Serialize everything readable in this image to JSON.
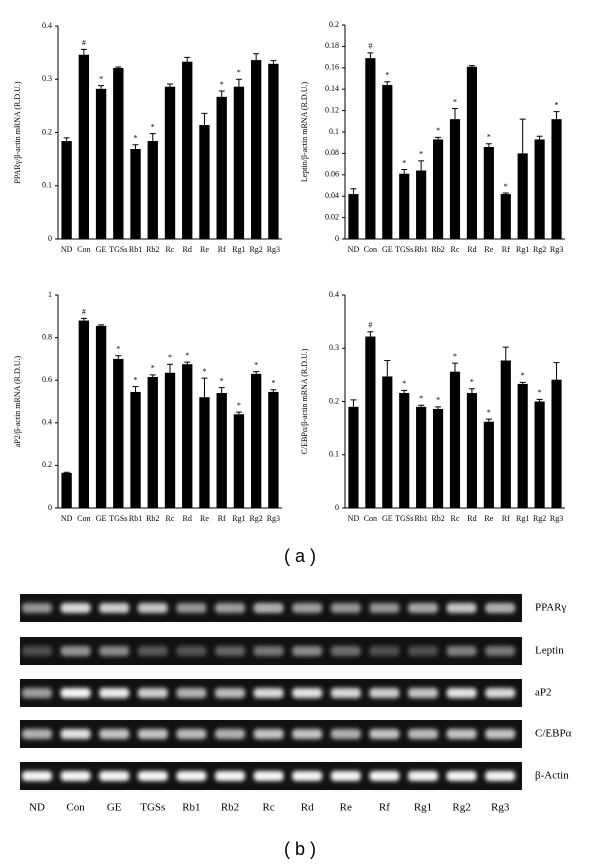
{
  "chart_data": [
    {
      "type": "bar",
      "y_label": "PPARγ/β-actin mRNA (R.D.U.)",
      "categories": [
        "ND",
        "Con",
        "GE",
        "TGSs",
        "Rb1",
        "Rb2",
        "Rc",
        "Rd",
        "Re",
        "Rf",
        "Rg1",
        "Rg2",
        "Rg3"
      ],
      "values": [
        0.184,
        0.346,
        0.282,
        0.321,
        0.169,
        0.184,
        0.286,
        0.333,
        0.214,
        0.267,
        0.286,
        0.336,
        0.329
      ],
      "errors": [
        0.006,
        0.01,
        0.006,
        0.002,
        0.008,
        0.014,
        0.005,
        0.008,
        0.022,
        0.011,
        0.014,
        0.012,
        0.006
      ],
      "markers": [
        null,
        "#",
        "*",
        null,
        "*",
        "*",
        null,
        null,
        null,
        "*",
        "*",
        null,
        null
      ],
      "color": "#000000",
      "ylim": [
        0,
        0.4
      ],
      "yticks": [
        0,
        0.1,
        0.2,
        0.3,
        0.4
      ]
    },
    {
      "type": "bar",
      "y_label": "Leptin/β-actin mRNA (R.D.U.)",
      "categories": [
        "ND",
        "Con",
        "GE",
        "TGSs",
        "Rb1",
        "Rb2",
        "Rc",
        "Rd",
        "Re",
        "Rf",
        "Rg1",
        "Rg2",
        "Rg3"
      ],
      "values": [
        0.042,
        0.169,
        0.144,
        0.061,
        0.064,
        0.093,
        0.112,
        0.161,
        0.086,
        0.042,
        0.08,
        0.093,
        0.112
      ],
      "errors": [
        0.005,
        0.005,
        0.003,
        0.004,
        0.009,
        0.002,
        0.01,
        0.001,
        0.003,
        0.001,
        0.032,
        0.003,
        0.007
      ],
      "markers": [
        null,
        "#",
        "*",
        "*",
        "*",
        "*",
        "*",
        null,
        "*",
        "*",
        null,
        null,
        "*"
      ],
      "color": "#000000",
      "ylim": [
        0,
        0.2
      ],
      "yticks": [
        0,
        0.02,
        0.04,
        0.06,
        0.08,
        0.1,
        0.12,
        0.14,
        0.16,
        0.18,
        0.2
      ]
    },
    {
      "type": "bar",
      "y_label": "aP2/β-actin mRNA (R.D.U.)",
      "categories": [
        "ND",
        "Con",
        "GE",
        "TGSs",
        "Rb1",
        "Rb2",
        "Rc",
        "Rd",
        "Re",
        "Rf",
        "Rg1",
        "Rg2",
        "Rg3"
      ],
      "values": [
        0.165,
        0.88,
        0.855,
        0.7,
        0.545,
        0.615,
        0.635,
        0.675,
        0.52,
        0.54,
        0.44,
        0.63,
        0.545
      ],
      "errors": [
        0.003,
        0.01,
        0.005,
        0.015,
        0.025,
        0.01,
        0.04,
        0.01,
        0.09,
        0.025,
        0.01,
        0.01,
        0.01
      ],
      "markers": [
        null,
        "#",
        null,
        "*",
        "*",
        "*",
        "*",
        "*",
        "*",
        "*",
        "*",
        "*",
        "*"
      ],
      "color": "#000000",
      "ylim": [
        0,
        1
      ],
      "yticks": [
        0,
        0.2,
        0.4,
        0.6,
        0.8,
        1
      ]
    },
    {
      "type": "bar",
      "y_label": "C/EBPα/β-actin mRNA (R.D.U.)",
      "categories": [
        "ND",
        "Con",
        "GE",
        "TGSs",
        "Rb1",
        "Rb2",
        "Rc",
        "Rd",
        "Re",
        "Rf",
        "Rg1",
        "Rg2",
        "Rg3"
      ],
      "values": [
        0.19,
        0.322,
        0.247,
        0.216,
        0.19,
        0.186,
        0.256,
        0.216,
        0.162,
        0.277,
        0.233,
        0.2,
        0.241
      ],
      "errors": [
        0.013,
        0.009,
        0.03,
        0.005,
        0.003,
        0.004,
        0.016,
        0.008,
        0.005,
        0.025,
        0.003,
        0.004,
        0.032
      ],
      "markers": [
        null,
        "#",
        null,
        "*",
        "*",
        "*",
        "*",
        "*",
        "*",
        null,
        "*",
        "*",
        null
      ],
      "color": "#000000",
      "ylim": [
        0,
        0.4
      ],
      "yticks": [
        0,
        0.1,
        0.2,
        0.3,
        0.4
      ]
    }
  ],
  "panel_a_label": "( a )",
  "gel": {
    "genes": [
      "PPARγ",
      "Leptin",
      "aP2",
      "C/EBPα",
      "β-Actin"
    ],
    "lanes": [
      "ND",
      "Con",
      "GE",
      "TGSs",
      "Rb1",
      "Rb2",
      "Rc",
      "Rd",
      "Re",
      "Rf",
      "Rg1",
      "Rg2",
      "Rg3"
    ],
    "panel_label": "( b )"
  }
}
